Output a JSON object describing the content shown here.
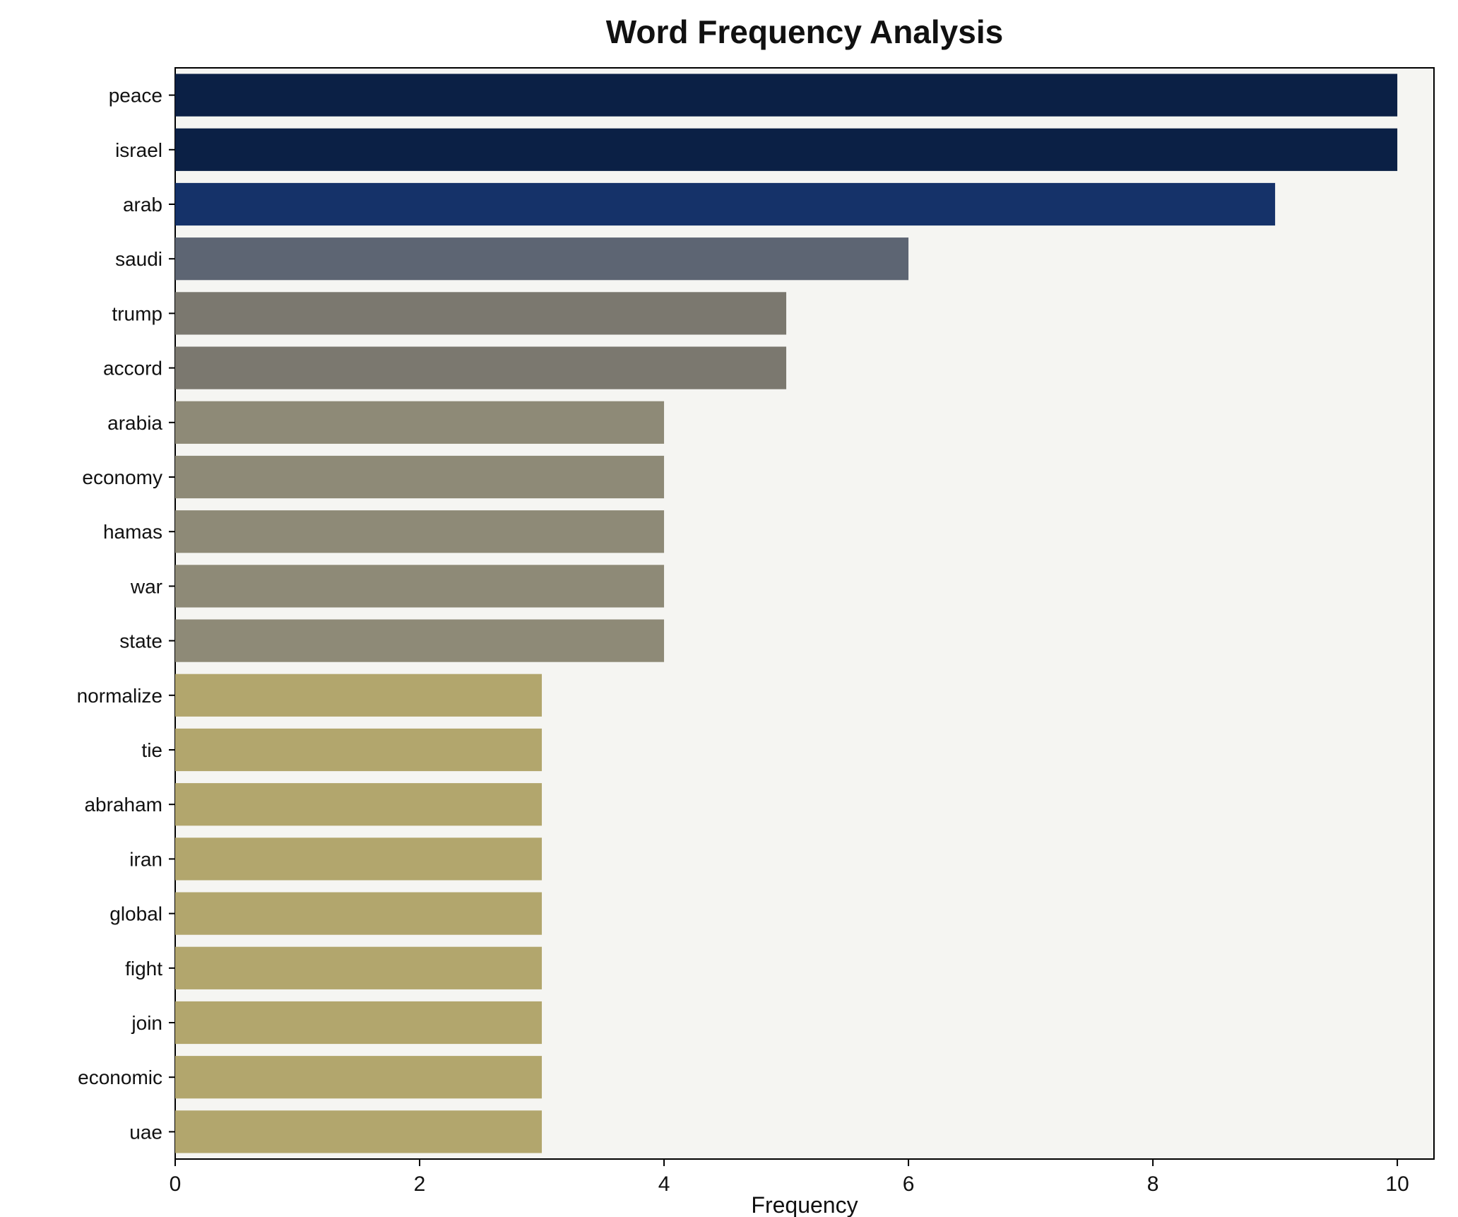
{
  "chart_data": {
    "type": "bar",
    "orientation": "horizontal",
    "title": "Word Frequency Analysis",
    "xlabel": "Frequency",
    "ylabel": "",
    "grid": false,
    "legend_position": "none",
    "plot_background": "#f5f5f2",
    "axis_color": "#000000",
    "xlim": [
      0,
      10.3
    ],
    "xticks": [
      0,
      2,
      4,
      6,
      8,
      10
    ],
    "categories": [
      "peace",
      "israel",
      "arab",
      "saudi",
      "trump",
      "accord",
      "arabia",
      "economy",
      "hamas",
      "war",
      "state",
      "normalize",
      "tie",
      "abraham",
      "iran",
      "global",
      "fight",
      "join",
      "economic",
      "uae"
    ],
    "values": [
      10,
      10,
      9,
      6,
      5,
      5,
      4,
      4,
      4,
      4,
      4,
      3,
      3,
      3,
      3,
      3,
      3,
      3,
      3,
      3
    ],
    "bar_colors": [
      "#0b2045",
      "#0b2045",
      "#153269",
      "#5d6573",
      "#7b786f",
      "#7b786f",
      "#8e8a77",
      "#8e8a77",
      "#8e8a77",
      "#8e8a77",
      "#8e8a77",
      "#b2a66d",
      "#b2a66d",
      "#b2a66d",
      "#b2a66d",
      "#b2a66d",
      "#b2a66d",
      "#b2a66d",
      "#b2a66d",
      "#b2a66d"
    ]
  }
}
